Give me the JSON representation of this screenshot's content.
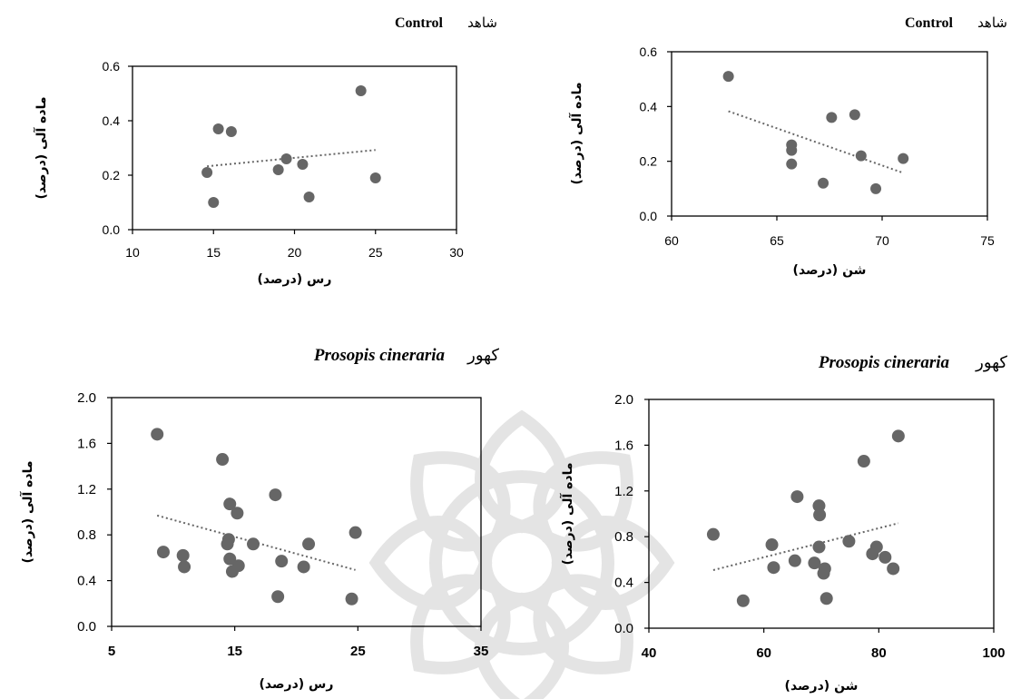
{
  "chart_data": [
    {
      "type": "scatter",
      "panel": "top-left",
      "title": "Control",
      "title_fa": "شاهد",
      "xlabel": "رس (درصد)",
      "ylabel": "ماده آلی (درصد)",
      "xlim": [
        10,
        30
      ],
      "ylim": [
        0,
        0.6
      ],
      "xticks": [
        10,
        15,
        20,
        25,
        30
      ],
      "yticks": [
        0.0,
        0.2,
        0.4,
        0.6
      ],
      "x_tick_labels": [
        "10",
        "15",
        "20",
        "25",
        "30"
      ],
      "y_tick_labels": [
        "0.0",
        "0.2",
        "0.4",
        "0.6"
      ],
      "grid": false,
      "trendline": "linear-dotted",
      "points": [
        {
          "x": 14.6,
          "y": 0.21
        },
        {
          "x": 15.0,
          "y": 0.1
        },
        {
          "x": 15.3,
          "y": 0.37
        },
        {
          "x": 16.1,
          "y": 0.36
        },
        {
          "x": 19.0,
          "y": 0.22
        },
        {
          "x": 19.5,
          "y": 0.26
        },
        {
          "x": 20.5,
          "y": 0.24
        },
        {
          "x": 20.9,
          "y": 0.12
        },
        {
          "x": 24.1,
          "y": 0.51
        },
        {
          "x": 25.0,
          "y": 0.19
        }
      ]
    },
    {
      "type": "scatter",
      "panel": "top-right",
      "title": "Control",
      "title_fa": "شاهد",
      "xlabel": "شن (درصد)",
      "ylabel": "ماده آلی (درصد)",
      "xlim": [
        60,
        75
      ],
      "ylim": [
        0,
        0.6
      ],
      "xticks": [
        60,
        65,
        70,
        75
      ],
      "yticks": [
        0.0,
        0.2,
        0.4,
        0.6
      ],
      "x_tick_labels": [
        "60",
        "65",
        "70",
        "75"
      ],
      "y_tick_labels": [
        "0.0",
        "0.2",
        "0.4",
        "0.6"
      ],
      "grid": false,
      "trendline": "linear-dotted",
      "points": [
        {
          "x": 62.7,
          "y": 0.51
        },
        {
          "x": 65.7,
          "y": 0.26
        },
        {
          "x": 65.7,
          "y": 0.24
        },
        {
          "x": 65.7,
          "y": 0.19
        },
        {
          "x": 67.2,
          "y": 0.12
        },
        {
          "x": 67.6,
          "y": 0.36
        },
        {
          "x": 68.7,
          "y": 0.37
        },
        {
          "x": 69.0,
          "y": 0.22
        },
        {
          "x": 69.7,
          "y": 0.1
        },
        {
          "x": 71.0,
          "y": 0.21
        }
      ]
    },
    {
      "type": "scatter",
      "panel": "bottom-left",
      "title": "Prosopis cineraria",
      "title_fa": "کهور",
      "xlabel": "رس (درصد)",
      "ylabel": "ماده آلی (درصد)",
      "xlim": [
        5,
        35
      ],
      "ylim": [
        0,
        2.0
      ],
      "xticks": [
        5,
        15,
        25,
        35
      ],
      "yticks": [
        0.0,
        0.4,
        0.8,
        1.2,
        1.6,
        2.0
      ],
      "x_tick_labels": [
        "5",
        "15",
        "25",
        "35"
      ],
      "y_tick_labels": [
        "0.0",
        "0.4",
        "0.8",
        "1.2",
        "1.6",
        "2.0"
      ],
      "grid": false,
      "trendline": "linear-dotted",
      "points": [
        {
          "x": 8.7,
          "y": 1.68
        },
        {
          "x": 9.2,
          "y": 0.65
        },
        {
          "x": 10.8,
          "y": 0.62
        },
        {
          "x": 10.9,
          "y": 0.52
        },
        {
          "x": 14.0,
          "y": 1.46
        },
        {
          "x": 14.4,
          "y": 0.72
        },
        {
          "x": 14.5,
          "y": 0.76
        },
        {
          "x": 14.6,
          "y": 1.07
        },
        {
          "x": 14.6,
          "y": 0.59
        },
        {
          "x": 14.8,
          "y": 0.48
        },
        {
          "x": 15.2,
          "y": 0.99
        },
        {
          "x": 15.3,
          "y": 0.53
        },
        {
          "x": 16.5,
          "y": 0.72
        },
        {
          "x": 18.3,
          "y": 1.15
        },
        {
          "x": 18.5,
          "y": 0.26
        },
        {
          "x": 18.8,
          "y": 0.57
        },
        {
          "x": 20.6,
          "y": 0.52
        },
        {
          "x": 21.0,
          "y": 0.72
        },
        {
          "x": 24.5,
          "y": 0.24
        },
        {
          "x": 24.8,
          "y": 0.82
        }
      ]
    },
    {
      "type": "scatter",
      "panel": "bottom-right",
      "title": "Prosopis cineraria",
      "title_fa": "کهور",
      "xlabel": "شن (درصد)",
      "ylabel": "ماده آلی (درصد)",
      "xlim": [
        40,
        100
      ],
      "ylim": [
        0,
        2.0
      ],
      "xticks": [
        40,
        60,
        80,
        100
      ],
      "yticks": [
        0.0,
        0.4,
        0.8,
        1.2,
        1.6,
        2.0
      ],
      "x_tick_labels": [
        "40",
        "60",
        "80",
        "100"
      ],
      "y_tick_labels": [
        "0.0",
        "0.4",
        "0.8",
        "1.2",
        "1.6",
        "2.0"
      ],
      "grid": false,
      "trendline": "linear-dotted",
      "points": [
        {
          "x": 51.2,
          "y": 0.82
        },
        {
          "x": 56.4,
          "y": 0.24
        },
        {
          "x": 61.4,
          "y": 0.73
        },
        {
          "x": 61.7,
          "y": 0.53
        },
        {
          "x": 65.4,
          "y": 0.59
        },
        {
          "x": 65.8,
          "y": 1.15
        },
        {
          "x": 68.8,
          "y": 0.57
        },
        {
          "x": 69.6,
          "y": 0.71
        },
        {
          "x": 69.6,
          "y": 1.07
        },
        {
          "x": 69.7,
          "y": 0.99
        },
        {
          "x": 70.4,
          "y": 0.48
        },
        {
          "x": 70.6,
          "y": 0.52
        },
        {
          "x": 70.9,
          "y": 0.26
        },
        {
          "x": 74.8,
          "y": 0.76
        },
        {
          "x": 77.4,
          "y": 1.46
        },
        {
          "x": 78.9,
          "y": 0.65
        },
        {
          "x": 79.6,
          "y": 0.71
        },
        {
          "x": 81.1,
          "y": 0.62
        },
        {
          "x": 82.5,
          "y": 0.52
        },
        {
          "x": 83.4,
          "y": 1.68
        }
      ]
    }
  ],
  "colors": {
    "marker": "#666666",
    "axes": "#000000",
    "trendline": "#666666",
    "watermark": "#dadada"
  }
}
